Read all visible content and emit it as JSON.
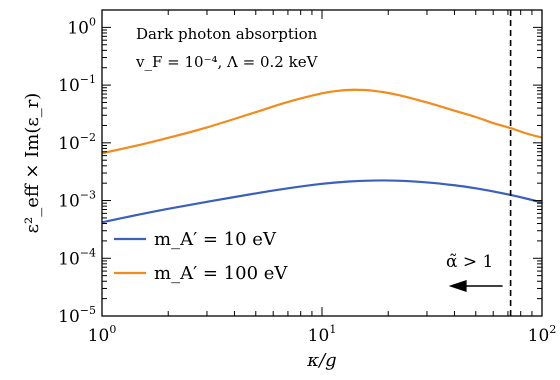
{
  "chart_data": {
    "type": "line",
    "title": "",
    "xlabel": "κ/g",
    "ylabel": "ε²_eff × Im(ε_r)",
    "xscale": "log",
    "yscale": "log",
    "xlim": [
      1,
      100
    ],
    "ylim": [
      1e-05,
      2
    ],
    "x_ticks": [
      {
        "value": 1,
        "base": "10",
        "exp": "0"
      },
      {
        "value": 10,
        "base": "10",
        "exp": "1"
      },
      {
        "value": 100,
        "base": "10",
        "exp": "2"
      }
    ],
    "y_ticks": [
      {
        "value": 1,
        "base": "10",
        "exp": "0"
      },
      {
        "value": 0.1,
        "base": "10",
        "exp": "−1"
      },
      {
        "value": 0.01,
        "base": "10",
        "exp": "−2"
      },
      {
        "value": 0.001,
        "base": "10",
        "exp": "−3"
      },
      {
        "value": 0.0001,
        "base": "10",
        "exp": "−4"
      },
      {
        "value": 1e-05,
        "base": "10",
        "exp": "−5"
      }
    ],
    "annotations": {
      "line1": "Dark photon absorption",
      "line2": "v_F = 10⁻⁴,  Λ = 0.2 keV",
      "threshold_label": "α̃ > 1"
    },
    "threshold_x": 72,
    "legend_position": "lower-left",
    "grid": false,
    "series": [
      {
        "name": "m_A′ = 10 eV",
        "color": "#3a5fbd",
        "x": [
          1,
          1.5,
          2,
          3,
          5,
          7,
          10,
          13,
          17,
          22,
          30,
          40,
          50,
          60,
          72,
          85,
          100
        ],
        "y": [
          0.00042,
          0.00058,
          0.00072,
          0.00095,
          0.00133,
          0.00163,
          0.00195,
          0.00213,
          0.00222,
          0.00221,
          0.00206,
          0.00184,
          0.00163,
          0.00144,
          0.00125,
          0.00108,
          0.00092
        ]
      },
      {
        "name": "m_A′ = 100 eV",
        "color": "#f28a1c",
        "x": [
          1,
          1.5,
          2,
          3,
          5,
          7,
          10,
          12,
          14,
          17,
          22,
          30,
          40,
          50,
          60,
          72,
          85,
          100
        ],
        "y": [
          0.0066,
          0.0093,
          0.0122,
          0.0185,
          0.034,
          0.051,
          0.072,
          0.08,
          0.083,
          0.08,
          0.068,
          0.05,
          0.036,
          0.028,
          0.022,
          0.018,
          0.0145,
          0.0123
        ]
      }
    ]
  }
}
